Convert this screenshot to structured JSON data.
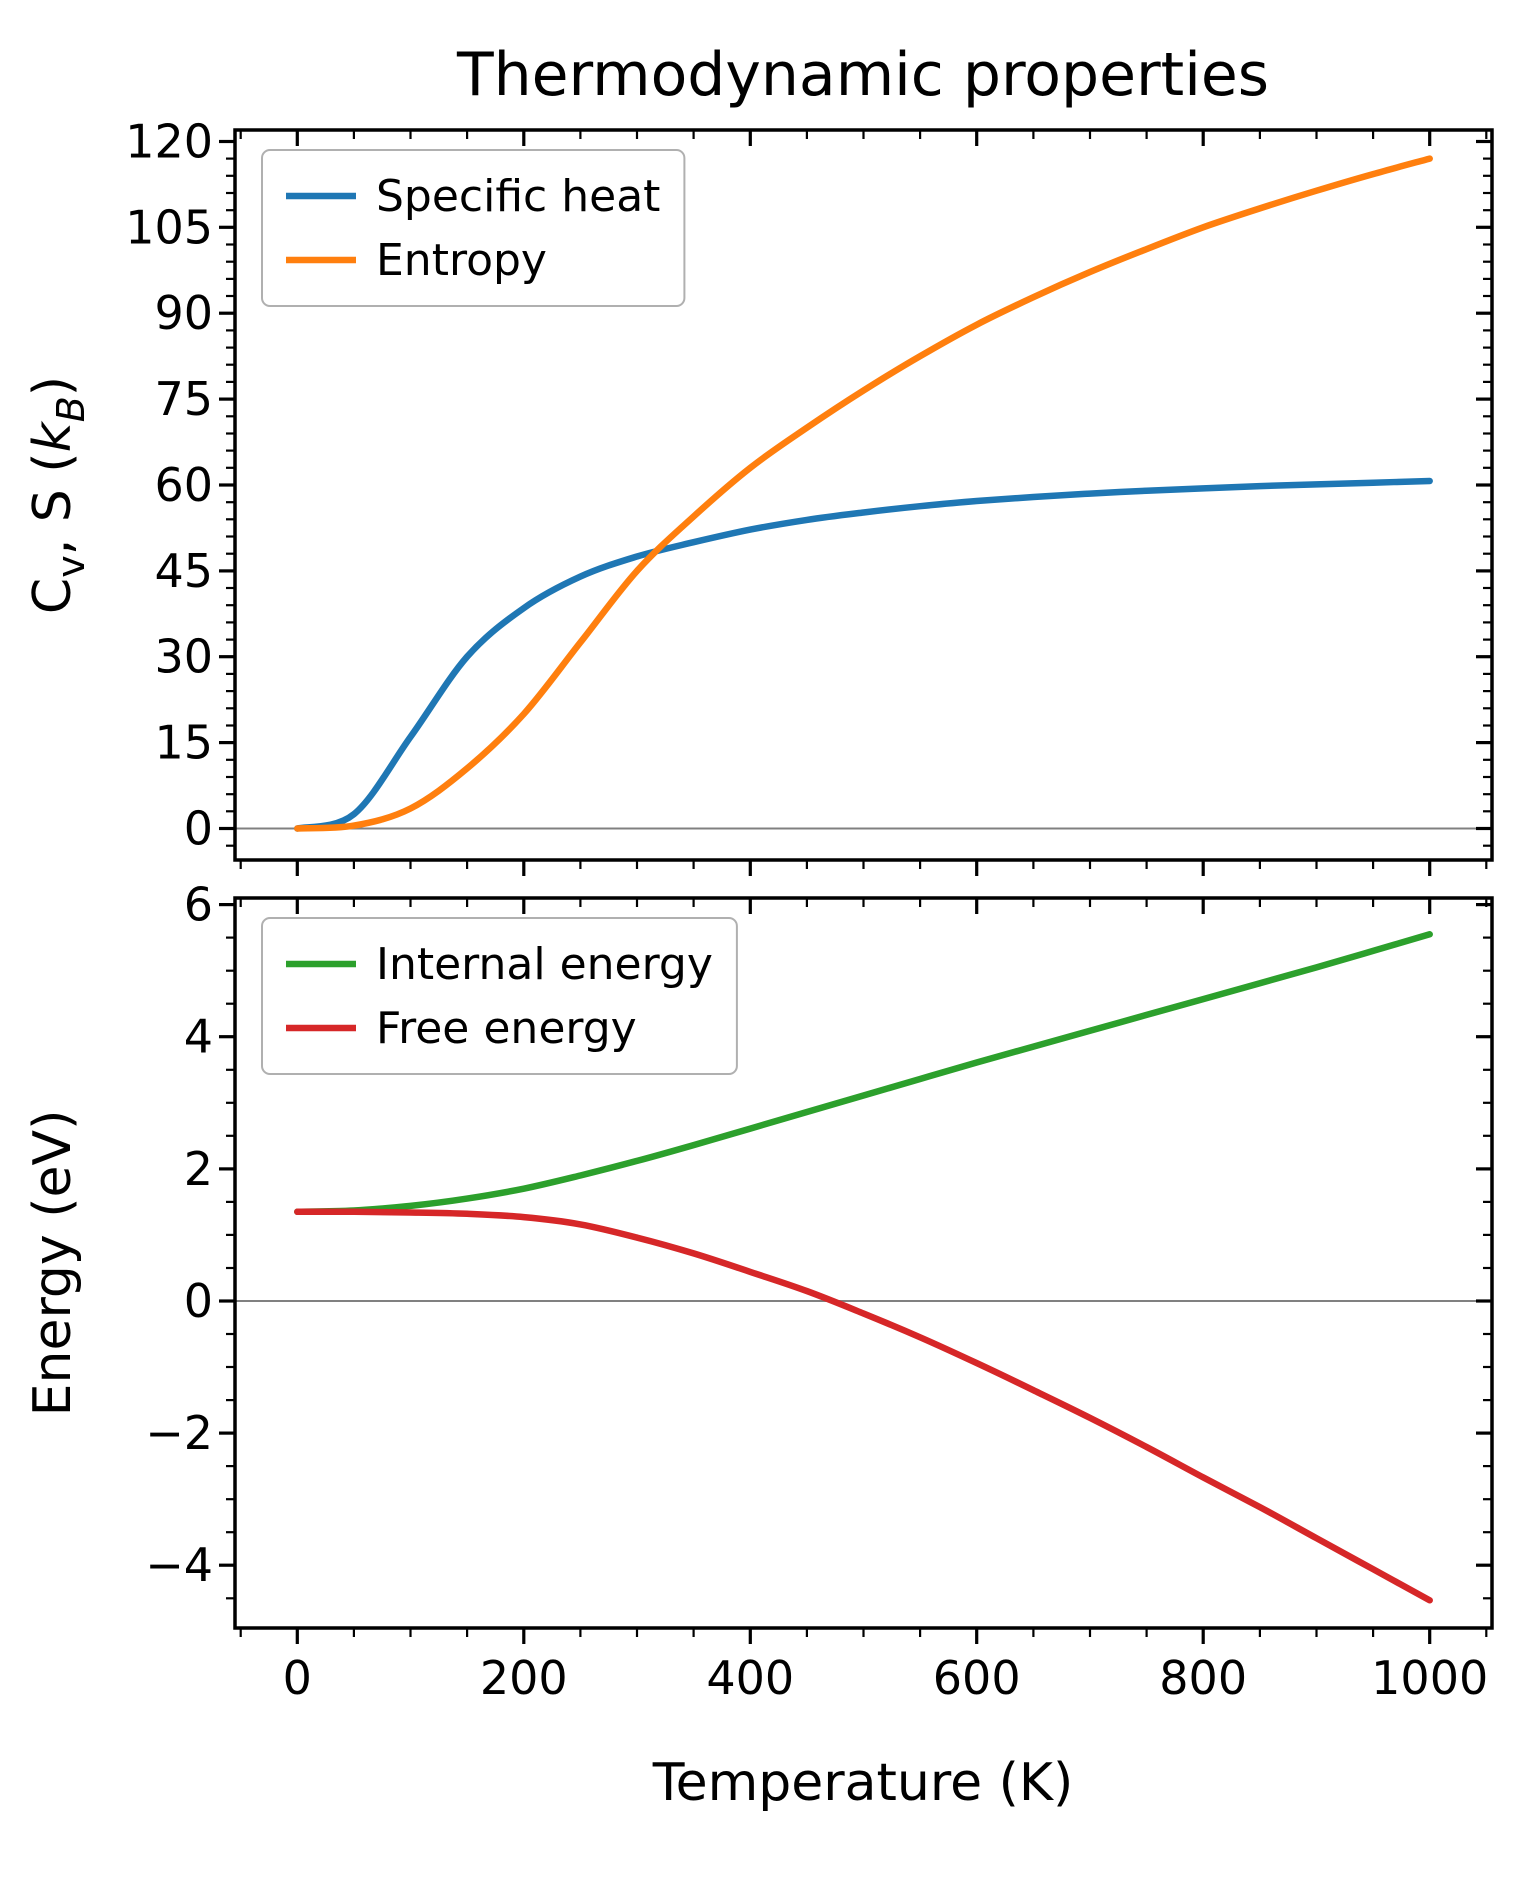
{
  "title": "Thermodynamic properties",
  "xlabel": "Temperature (K)",
  "colors": {
    "specific_heat": "#1f77b4",
    "entropy": "#ff7f0e",
    "internal_energy": "#2ca02c",
    "free_energy": "#d62728",
    "axis": "#000000",
    "zero_line": "#808080",
    "legend_border": "#b0b0b0",
    "background": "#ffffff"
  },
  "chart_data": [
    {
      "id": "cv-entropy-plot",
      "type": "line",
      "title": "Thermodynamic properties",
      "xlabel": "Temperature (K)",
      "ylabel": "Cv, S (kB)",
      "ylabel_segments": [
        {
          "text": "C"
        },
        {
          "text": "v",
          "sub": true
        },
        {
          "text": ", S ("
        },
        {
          "text": "k",
          "italic": true
        },
        {
          "text": "B",
          "sub": true,
          "italic": true
        },
        {
          "text": ")"
        }
      ],
      "x": [
        0,
        50,
        100,
        150,
        200,
        250,
        300,
        350,
        400,
        450,
        500,
        550,
        600,
        650,
        700,
        750,
        800,
        850,
        900,
        950,
        1000
      ],
      "series": [
        {
          "name": "Specific heat",
          "color": "#1f77b4",
          "values": [
            0,
            2.5,
            16,
            30,
            38.5,
            44,
            47.5,
            50,
            52.2,
            53.9,
            55.2,
            56.3,
            57.2,
            57.9,
            58.5,
            59.0,
            59.4,
            59.8,
            60.1,
            60.4,
            60.7
          ]
        },
        {
          "name": "Entropy",
          "color": "#ff7f0e",
          "values": [
            0,
            0.5,
            3.5,
            10.5,
            20,
            32.5,
            45,
            54.5,
            63,
            70,
            76.5,
            82.5,
            88,
            92.8,
            97.2,
            101.2,
            105,
            108.3,
            111.4,
            114.3,
            117
          ]
        }
      ],
      "xlim": [
        -55,
        1055
      ],
      "ylim": [
        -5.5,
        122
      ],
      "xticks": [
        0,
        200,
        400,
        600,
        800,
        1000
      ],
      "xtick_labels": [
        "0",
        "200",
        "400",
        "600",
        "800",
        "1000"
      ],
      "yticks": [
        0,
        15,
        30,
        45,
        60,
        75,
        90,
        105,
        120
      ],
      "ytick_labels": [
        "0",
        "15",
        "30",
        "45",
        "60",
        "75",
        "90",
        "105",
        "120"
      ],
      "x_minor_step": 50,
      "y_minor_step": 3,
      "grid": false,
      "zero_line": true,
      "legend_position": "upper left",
      "show_x_tick_labels": false
    },
    {
      "id": "energy-plot",
      "type": "line",
      "title": "",
      "xlabel": "Temperature (K)",
      "ylabel": "Energy (eV)",
      "ylabel_segments": [
        {
          "text": "Energy (eV)"
        }
      ],
      "x": [
        0,
        50,
        100,
        150,
        200,
        250,
        300,
        350,
        400,
        450,
        500,
        550,
        600,
        650,
        700,
        750,
        800,
        850,
        900,
        950,
        1000
      ],
      "series": [
        {
          "name": "Internal energy",
          "color": "#2ca02c",
          "values": [
            1.35,
            1.37,
            1.44,
            1.55,
            1.7,
            1.9,
            2.12,
            2.36,
            2.61,
            2.86,
            3.11,
            3.36,
            3.61,
            3.85,
            4.09,
            4.33,
            4.57,
            4.81,
            5.05,
            5.3,
            5.55
          ]
        },
        {
          "name": "Free energy",
          "color": "#d62728",
          "values": [
            1.35,
            1.35,
            1.34,
            1.32,
            1.27,
            1.16,
            0.96,
            0.72,
            0.44,
            0.15,
            -0.19,
            -0.55,
            -0.94,
            -1.35,
            -1.77,
            -2.21,
            -2.67,
            -3.12,
            -3.59,
            -4.06,
            -4.53
          ]
        }
      ],
      "xlim": [
        -55,
        1055
      ],
      "ylim": [
        -4.95,
        6.1
      ],
      "xticks": [
        0,
        200,
        400,
        600,
        800,
        1000
      ],
      "xtick_labels": [
        "0",
        "200",
        "400",
        "600",
        "800",
        "1000"
      ],
      "yticks": [
        -4,
        -2,
        0,
        2,
        4,
        6
      ],
      "ytick_labels": [
        "−4",
        "−2",
        "0",
        "2",
        "4",
        "6"
      ],
      "x_minor_step": 50,
      "y_minor_step": 0.5,
      "grid": false,
      "zero_line": true,
      "legend_position": "upper left",
      "show_x_tick_labels": true
    }
  ]
}
